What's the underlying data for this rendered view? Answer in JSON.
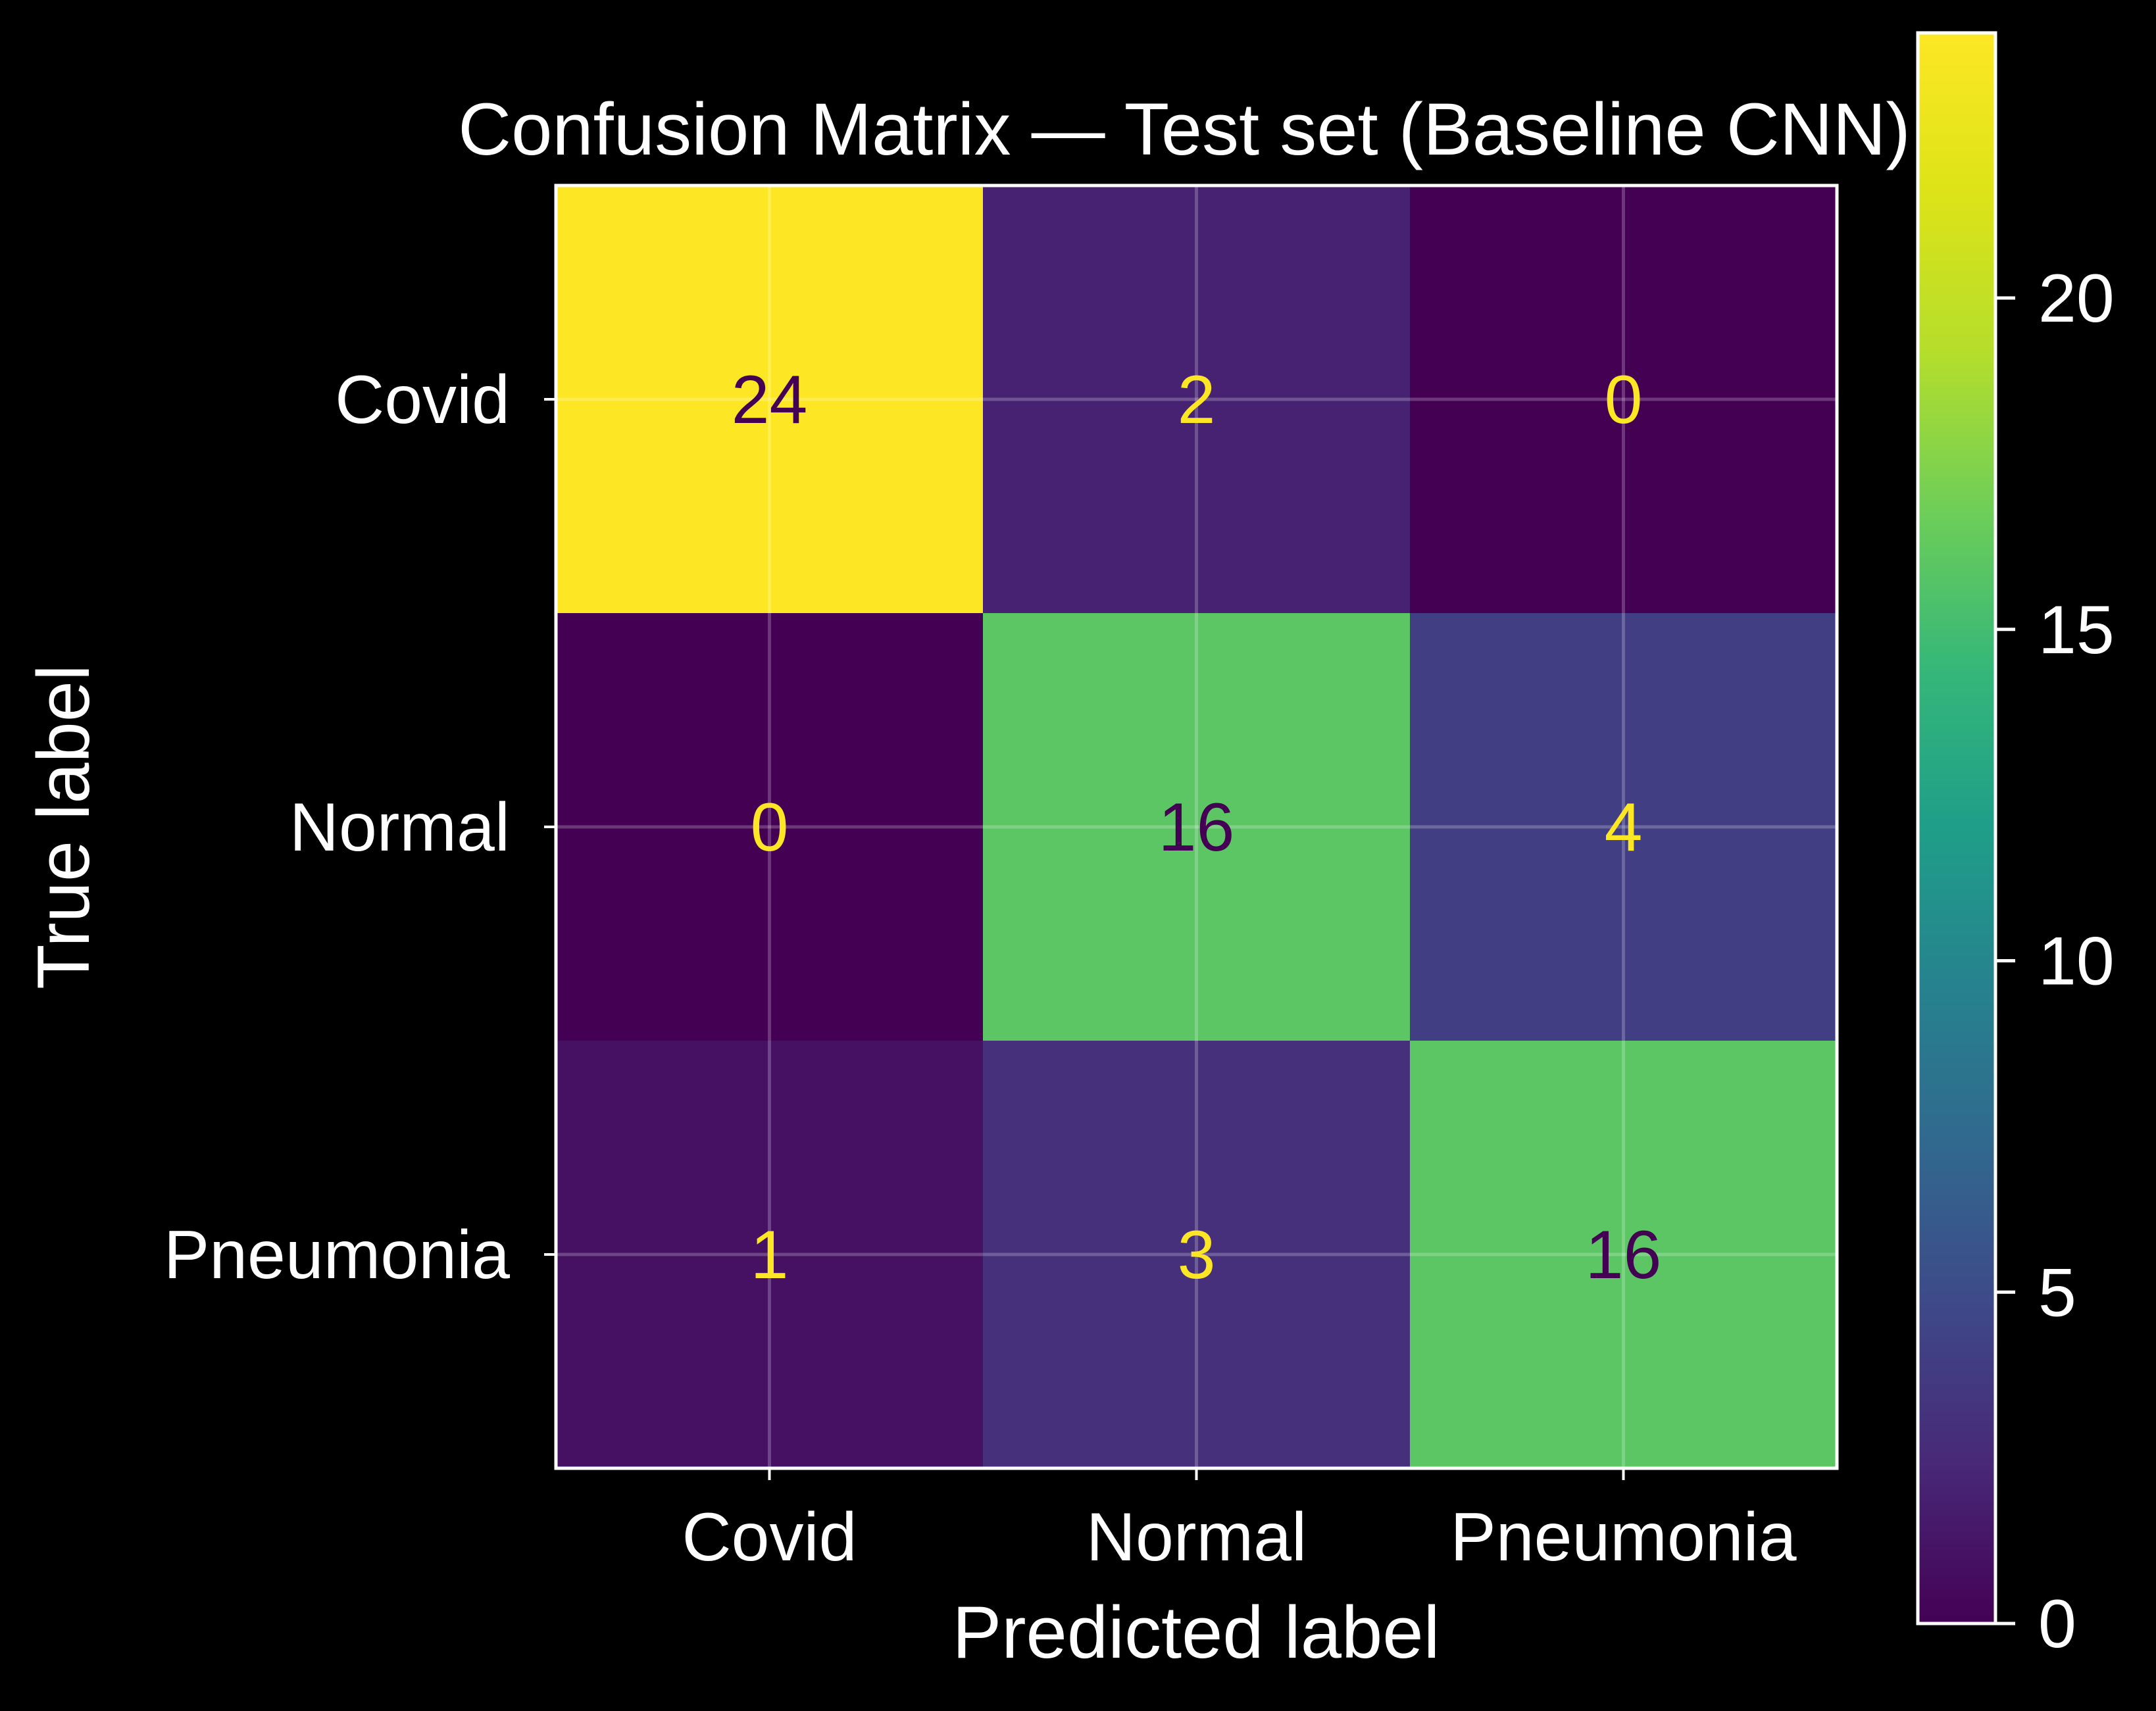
{
  "chart_data": {
    "type": "heatmap",
    "title": "Confusion Matrix — Test set (Baseline CNN)",
    "xlabel": "Predicted label",
    "ylabel": "True label",
    "x_categories": [
      "Covid",
      "Normal",
      "Pneumonia"
    ],
    "y_categories": [
      "Covid",
      "Normal",
      "Pneumonia"
    ],
    "values": [
      [
        24,
        2,
        0
      ],
      [
        0,
        16,
        4
      ],
      [
        1,
        3,
        16
      ]
    ],
    "colormap": "viridis",
    "color_range": [
      0,
      24
    ],
    "colorbar": {
      "ticks": [
        0,
        5,
        10,
        15,
        20
      ],
      "tick_labels": [
        "0",
        "5",
        "10",
        "15",
        "20"
      ]
    },
    "grid": true,
    "text_color_light": "#fde725",
    "text_color_dark": "#440154"
  },
  "colors": {
    "background": "#000000",
    "foreground": "#ffffff"
  }
}
